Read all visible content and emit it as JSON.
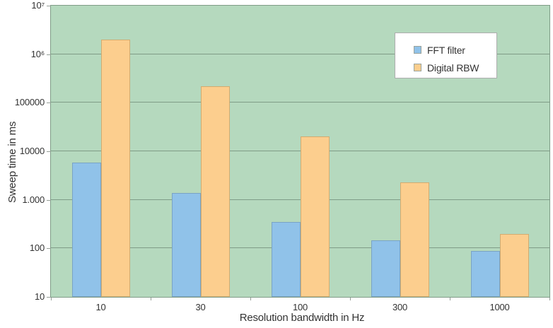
{
  "chart_data": {
    "type": "bar",
    "title": "",
    "xlabel": "Resolution bandwidth in Hz",
    "ylabel": "Sweep time in ms",
    "categories": [
      "10",
      "30",
      "100",
      "300",
      "1000"
    ],
    "series": [
      {
        "name": "FFT filter",
        "color": "#90c2e9",
        "border_color": "#7aa4c4",
        "values": [
          5800,
          1400,
          350,
          145,
          90
        ]
      },
      {
        "name": "Digital RBW",
        "color": "#fcce8e",
        "border_color": "#d2ab70",
        "values": [
          2000000,
          220000,
          20000,
          2300,
          200
        ]
      }
    ],
    "y_scale": "log",
    "ylim": [
      10,
      10000000
    ],
    "y_tick_labels": [
      "10",
      "100",
      "1.000",
      "10000",
      "100000",
      "10⁶",
      "10⁷"
    ],
    "grid": true,
    "legend_position": "top-right",
    "colors": {
      "plot_background": "#b5d9be",
      "gridline": "#7f9c87",
      "axis_border": "#7f9c87",
      "tick": "#969f98",
      "text": "#333333",
      "legend_background": "#ffffff",
      "legend_border": "#adadad"
    }
  }
}
